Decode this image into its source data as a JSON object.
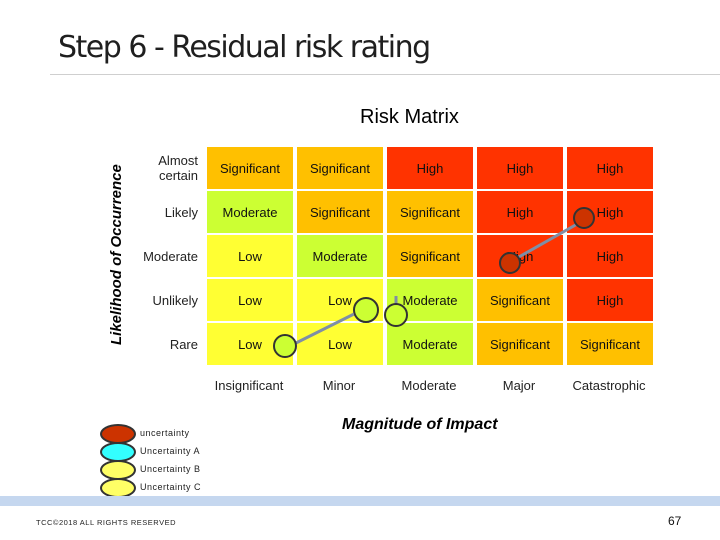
{
  "title": "Step 6 - Residual risk rating",
  "matrix_title": "Risk Matrix",
  "y_axis_label": "Likelihood of Occurrence",
  "x_axis_label": "Magnitude of Impact",
  "rows": [
    {
      "label": "Almost certain",
      "cells": [
        "Significant",
        "Significant",
        "High",
        "High",
        "High"
      ]
    },
    {
      "label": "Likely",
      "cells": [
        "Moderate",
        "Significant",
        "Significant",
        "High",
        "High"
      ]
    },
    {
      "label": "Moderate",
      "cells": [
        "Low",
        "Moderate",
        "Significant",
        "High",
        "High"
      ]
    },
    {
      "label": "Unlikely",
      "cells": [
        "Low",
        "Low",
        "Moderate",
        "Significant",
        "High"
      ]
    },
    {
      "label": "Rare",
      "cells": [
        "Low",
        "Low",
        "Moderate",
        "Significant",
        "Significant"
      ]
    }
  ],
  "columns": [
    "Insignificant",
    "Minor",
    "Moderate",
    "Major",
    "Catastrophic"
  ],
  "colors": {
    "Low": "#ffff33",
    "Moderate": "#ccff33",
    "Significant": "#ffc000",
    "High": "#ff3300",
    "uncertainty_marker": "#cc3300",
    "uncertainty_a": "#33ffff",
    "uncertainty_b": "#ffff66"
  },
  "legend": [
    {
      "label": "uncertainty",
      "color": "#cc3300"
    },
    {
      "label": "Uncertainty A",
      "color": "#33ffff"
    },
    {
      "label": "Uncertainty B",
      "color": "#ffff66"
    },
    {
      "label": "Uncertainty C",
      "color": "#ffff66"
    }
  ],
  "footer": "TCC©2018 ALL RIGHTS RESERVED",
  "page_number": "67"
}
